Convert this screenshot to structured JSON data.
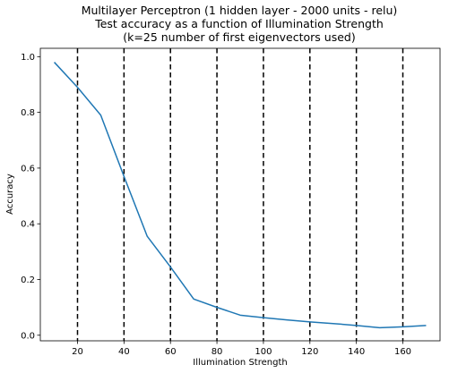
{
  "chart_data": {
    "type": "line",
    "title_lines": [
      "Multilayer Perceptron (1 hidden layer - 2000 units - relu)",
      "Test accuracy as a function of Illumination Strength",
      "(k=25 number of first eigenvectors used)"
    ],
    "xlabel": "Illumination Strength",
    "ylabel": "Accuracy",
    "xlim": [
      4,
      176
    ],
    "ylim": [
      -0.02,
      1.03
    ],
    "xticks": [
      20,
      40,
      60,
      80,
      100,
      120,
      140,
      160
    ],
    "yticks": [
      0.0,
      0.2,
      0.4,
      0.6,
      0.8,
      1.0
    ],
    "ytick_labels": [
      "0.0",
      "0.2",
      "0.4",
      "0.6",
      "0.8",
      "1.0"
    ],
    "grid": false,
    "series": [
      {
        "color": "#1f77b4",
        "x": [
          10,
          20,
          30,
          40,
          50,
          60,
          70,
          80,
          90,
          100,
          110,
          120,
          130,
          140,
          150,
          160,
          170
        ],
        "y": [
          0.98,
          0.89,
          0.79,
          0.57,
          0.355,
          0.245,
          0.13,
          0.1,
          0.072,
          0.063,
          0.055,
          0.048,
          0.042,
          0.035,
          0.027,
          0.03,
          0.035
        ]
      }
    ],
    "vlines": {
      "x": [
        20,
        40,
        60,
        80,
        100,
        120,
        140,
        160
      ],
      "color": "#000000",
      "style": "dashed"
    }
  }
}
